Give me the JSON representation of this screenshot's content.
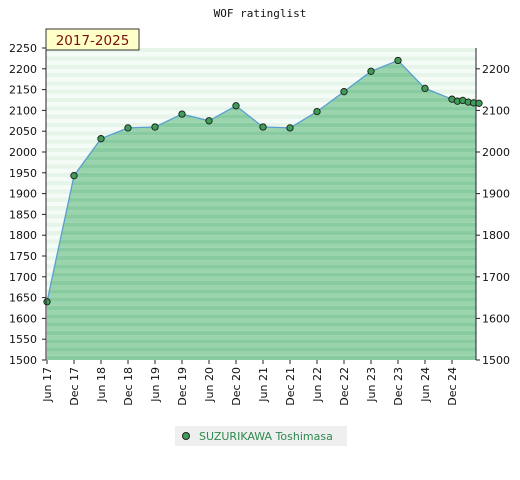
{
  "chart_data": {
    "type": "area",
    "title": "WOF ratinglist",
    "period_label": "2017-2025",
    "ylim": [
      1500,
      2250
    ],
    "y_ticks_left": [
      1500,
      1550,
      1600,
      1650,
      1700,
      1750,
      1800,
      1850,
      1900,
      1950,
      2000,
      2050,
      2100,
      2150,
      2200,
      2250
    ],
    "y_ticks_right": [
      1500,
      1600,
      1700,
      1800,
      1900,
      2000,
      2100,
      2200
    ],
    "x_ticks": [
      {
        "label": "Jun 17",
        "t": 0
      },
      {
        "label": "Dec 17",
        "t": 1
      },
      {
        "label": "Jun 18",
        "t": 2
      },
      {
        "label": "Dec 18",
        "t": 3
      },
      {
        "label": "Jun 19",
        "t": 4
      },
      {
        "label": "Dec 19",
        "t": 5
      },
      {
        "label": "Jun 20",
        "t": 6
      },
      {
        "label": "Dec 20",
        "t": 7
      },
      {
        "label": "Jun 21",
        "t": 8
      },
      {
        "label": "Dec 21",
        "t": 9
      },
      {
        "label": "Jun 22",
        "t": 10
      },
      {
        "label": "Dec 22",
        "t": 11
      },
      {
        "label": "Jun 23",
        "t": 12
      },
      {
        "label": "Dec 23",
        "t": 13
      },
      {
        "label": "Jun 24",
        "t": 14
      },
      {
        "label": "Dec 24",
        "t": 15
      }
    ],
    "series": [
      {
        "name": "SUZURIKAWA Toshimasa",
        "color": "#2f8a4f",
        "points": [
          {
            "t": 0,
            "y": 1640
          },
          {
            "t": 1,
            "y": 1943
          },
          {
            "t": 2,
            "y": 2032
          },
          {
            "t": 3,
            "y": 2058
          },
          {
            "t": 4,
            "y": 2060
          },
          {
            "t": 5,
            "y": 2091
          },
          {
            "t": 6,
            "y": 2075
          },
          {
            "t": 7,
            "y": 2111
          },
          {
            "t": 8,
            "y": 2060
          },
          {
            "t": 9,
            "y": 2058
          },
          {
            "t": 10,
            "y": 2097
          },
          {
            "t": 11,
            "y": 2145
          },
          {
            "t": 12,
            "y": 2194
          },
          {
            "t": 13,
            "y": 2220
          },
          {
            "t": 14,
            "y": 2153
          },
          {
            "t": 15,
            "y": 2127
          },
          {
            "t": 15.2,
            "y": 2122
          },
          {
            "t": 15.4,
            "y": 2124
          },
          {
            "t": 15.6,
            "y": 2120
          },
          {
            "t": 15.8,
            "y": 2118
          },
          {
            "t": 16,
            "y": 2117
          }
        ]
      }
    ],
    "grid": true,
    "legend": "bottom-center"
  }
}
